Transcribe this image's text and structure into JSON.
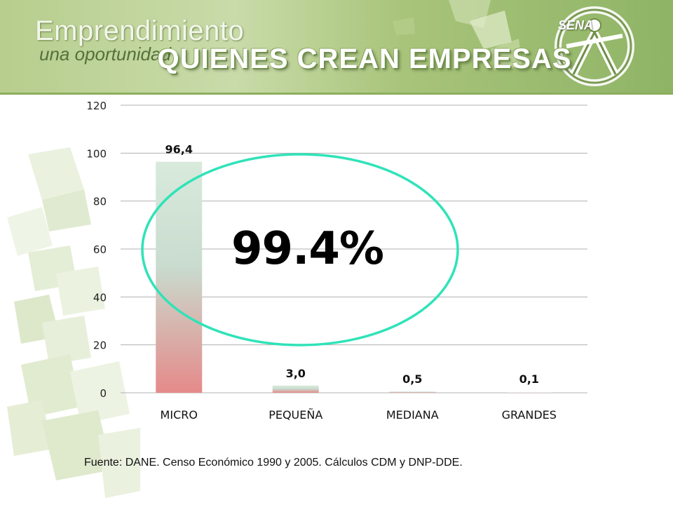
{
  "header": {
    "brand_title": "Emprendimiento",
    "brand_subtitle": "una oportunidad",
    "page_title": "QUIENES CREAN EMPRESAS",
    "logo_text": "SENA"
  },
  "highlight": {
    "label": "99.4%"
  },
  "source": "Fuente: DANE. Censo Económico 1990 y 2005. Cálculos CDM y DNP-DDE.",
  "chart_data": {
    "type": "bar",
    "categories": [
      "MICRO",
      "PEQUEÑA",
      "MEDIANA",
      "GRANDES"
    ],
    "values": [
      96.4,
      3.0,
      0.5,
      0.1
    ],
    "data_labels": [
      "96,4",
      "3,0",
      "0,5",
      "0,1"
    ],
    "title": "",
    "xlabel": "",
    "ylabel": "",
    "ylim": [
      0,
      120
    ],
    "yticks": [
      0,
      20,
      40,
      60,
      80,
      100,
      120
    ],
    "grid": true,
    "legend": "none"
  },
  "colors": {
    "bar_top": "#d8eadc",
    "bar_bottom": "#e58a8a",
    "ellipse": "#2fe3b8",
    "gridline": "#b0b0b0"
  }
}
